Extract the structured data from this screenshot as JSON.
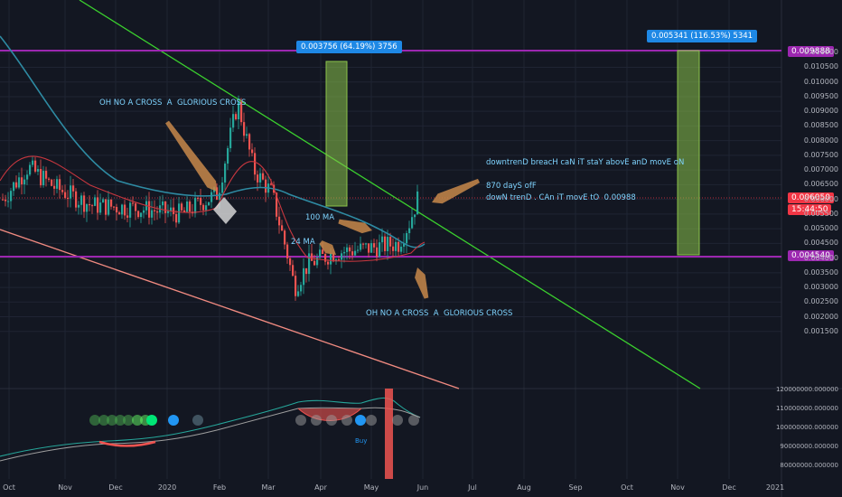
{
  "chart_data": {
    "type": "candlestick",
    "price_axis": {
      "ticks": [
        "0.011000",
        "0.010500",
        "0.010000",
        "0.009500",
        "0.009000",
        "0.008500",
        "0.008000",
        "0.007500",
        "0.007000",
        "0.006500",
        "0.006000",
        "0.005500",
        "0.005000",
        "0.004500",
        "0.004000",
        "0.003500",
        "0.003000",
        "0.002500",
        "0.002000",
        "0.001500"
      ],
      "scale": "linear"
    },
    "time_axis": {
      "ticks": [
        "Oct",
        "Nov",
        "Dec",
        "2020",
        "Feb",
        "Mar",
        "Apr",
        "May",
        "Jun",
        "Jul",
        "Aug",
        "Sep",
        "Oct",
        "Nov",
        "Dec",
        "2021"
      ]
    },
    "indicator_axis": {
      "ticks": [
        "120000000.000000",
        "110000000.000000",
        "100000000.000000",
        "90000000.000000",
        "80000000.000000"
      ]
    },
    "price_labels": {
      "top_level": "0.009888",
      "current": "0.006050",
      "countdown": "15:44:50",
      "bottom_level": "0.004540"
    },
    "measure_tags": [
      "0.003756 (64.19%) 3756",
      "0.005341 (116.53%) 5341"
    ],
    "annotations": {
      "cross_left": "OH NO A CROSS  A  GLORIOUS CROSS",
      "cross_right": "OH NO A CROSS  A  GLORIOUS CROSS",
      "ma100": "100 MA",
      "ma24": "24 MA",
      "downtrend": "downtrenD breacH caN iT staY abovE anD movE oN\n\n870 dayS ofF\ndowN trenD . CAn iT movE tO  0.00988",
      "buy": "Buy"
    }
  },
  "colors": {
    "background": "#131722",
    "level_line": "#9c27b0",
    "trend_green": "#3bd12e",
    "trend_pink": "#f08a80",
    "ma_blue": "#2e8ba3",
    "ma_red": "#c8373f",
    "up": "#26a69a",
    "down": "#ef5350",
    "arrow": "#c8884a",
    "box": "#8bc34a"
  }
}
